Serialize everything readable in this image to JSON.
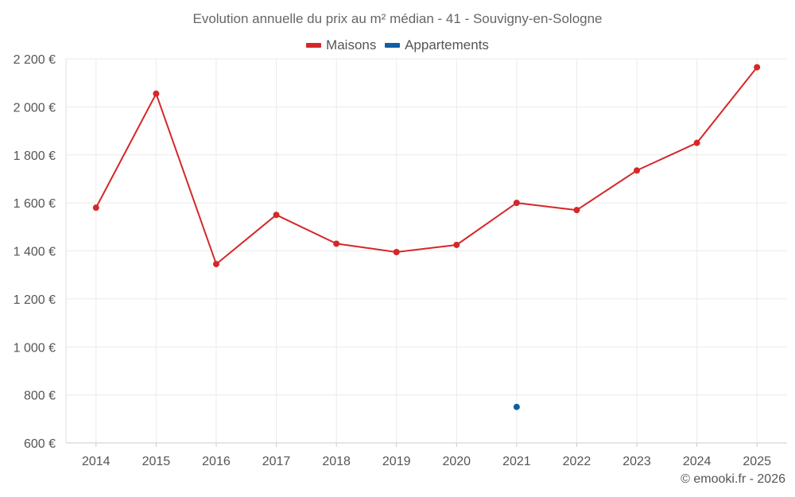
{
  "chart_data": {
    "type": "line",
    "title": "Evolution annuelle du prix au m² médian - 41 - Souvigny-en-Sologne",
    "xlabel": "",
    "ylabel": "",
    "categories": [
      "2014",
      "2015",
      "2016",
      "2017",
      "2018",
      "2019",
      "2020",
      "2021",
      "2022",
      "2023",
      "2024",
      "2025"
    ],
    "ylim": [
      600,
      2200
    ],
    "yticks": [
      600,
      800,
      1000,
      1200,
      1400,
      1600,
      1800,
      2000,
      2200
    ],
    "ytick_labels": [
      "600 €",
      "800 €",
      "1 000 €",
      "1 200 €",
      "1 400 €",
      "1 600 €",
      "1 800 €",
      "2 000 €",
      "2 200 €"
    ],
    "grid": true,
    "legend_position": "top-center",
    "series": [
      {
        "name": "Maisons",
        "color": "#d62728",
        "values": [
          1580,
          2055,
          1345,
          1550,
          1430,
          1395,
          1425,
          1600,
          1570,
          1735,
          1850,
          2165
        ]
      },
      {
        "name": "Appartements",
        "color": "#0f5fa3",
        "values": [
          null,
          null,
          null,
          null,
          null,
          null,
          null,
          750,
          null,
          null,
          null,
          null
        ]
      }
    ]
  },
  "footer": {
    "copyright": "© emooki.fr - 2026"
  }
}
